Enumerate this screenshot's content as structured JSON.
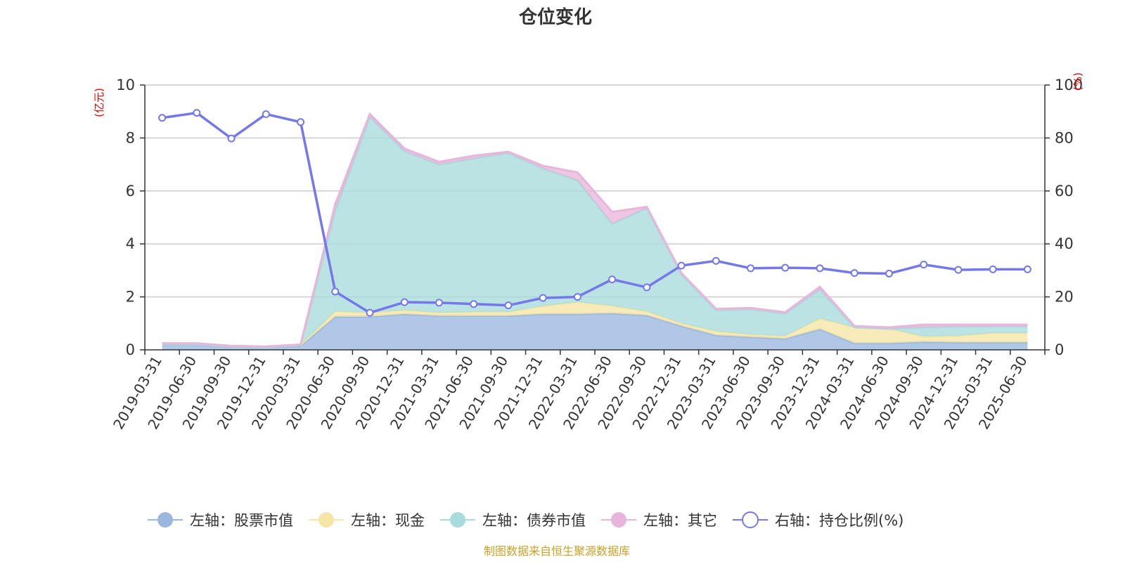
{
  "chart_data": {
    "type": "area",
    "title": "仓位变化",
    "footer": "制图数据来自恒生聚源数据库",
    "y_left": {
      "name": "(亿元)",
      "min": 0,
      "max": 10,
      "ticks": [
        "0",
        "2",
        "4",
        "6",
        "8",
        "10"
      ]
    },
    "y_right": {
      "name": "(%)",
      "min": 0,
      "max": 100,
      "ticks": [
        "0",
        "20",
        "40",
        "60",
        "80",
        "100"
      ]
    },
    "grid": true,
    "legend_position": "bottom",
    "categories": [
      "2019-03-31",
      "2019-06-30",
      "2019-09-30",
      "2019-12-31",
      "2020-03-31",
      "2020-06-30",
      "2020-09-30",
      "2020-12-31",
      "2021-03-31",
      "2021-06-30",
      "2021-09-30",
      "2021-12-31",
      "2022-03-31",
      "2022-06-30",
      "2022-09-30",
      "2022-12-31",
      "2023-03-31",
      "2023-06-30",
      "2023-09-30",
      "2023-12-31",
      "2024-03-31",
      "2024-06-30",
      "2024-09-30",
      "2024-12-31",
      "2025-03-31",
      "2025-06-30"
    ],
    "series": [
      {
        "name": "左轴：股票市值",
        "axis": "left",
        "kind": "stack",
        "color": "#9bb7e0",
        "values": [
          0.2,
          0.2,
          0.12,
          0.1,
          0.15,
          1.25,
          1.25,
          1.35,
          1.28,
          1.28,
          1.28,
          1.35,
          1.35,
          1.38,
          1.3,
          0.9,
          0.55,
          0.48,
          0.42,
          0.78,
          0.25,
          0.25,
          0.3,
          0.28,
          0.28,
          0.28
        ]
      },
      {
        "name": "左轴：现金",
        "axis": "left",
        "kind": "stack",
        "color": "#f5e6a6",
        "values": [
          0.02,
          0.02,
          0.01,
          0.01,
          0.03,
          0.2,
          0.15,
          0.15,
          0.12,
          0.15,
          0.15,
          0.3,
          0.45,
          0.28,
          0.15,
          0.1,
          0.15,
          0.1,
          0.1,
          0.4,
          0.6,
          0.55,
          0.2,
          0.25,
          0.35,
          0.35
        ]
      },
      {
        "name": "左轴：债券市值",
        "axis": "left",
        "kind": "stack",
        "color": "#a8dbdb",
        "values": [
          0,
          0,
          0,
          0,
          0,
          3.8,
          7.4,
          6.0,
          5.6,
          5.8,
          6.0,
          5.2,
          4.6,
          3.1,
          3.9,
          1.85,
          0.8,
          0.95,
          0.85,
          1.1,
          0,
          0,
          0.35,
          0.35,
          0.25,
          0.25
        ]
      },
      {
        "name": "左轴：其它",
        "axis": "left",
        "kind": "stack",
        "color": "#e8b6db",
        "values": [
          0.03,
          0.03,
          0.02,
          0.02,
          0.02,
          0.25,
          0.1,
          0.1,
          0.1,
          0.1,
          0.05,
          0.1,
          0.3,
          0.45,
          0.05,
          0.05,
          0.05,
          0.05,
          0.05,
          0.1,
          0.05,
          0.05,
          0.1,
          0.07,
          0.07,
          0.07
        ]
      },
      {
        "name": "右轴：持仓比例(%)",
        "axis": "right",
        "kind": "line",
        "color": "#7478ea",
        "values": [
          87.6,
          89.5,
          79.8,
          89.0,
          86.0,
          22.0,
          14.0,
          18.0,
          17.8,
          17.3,
          16.8,
          19.6,
          20.0,
          26.6,
          23.6,
          31.8,
          33.6,
          30.8,
          31.0,
          30.8,
          29.0,
          28.8,
          32.2,
          30.2,
          30.4,
          30.4
        ]
      }
    ]
  }
}
